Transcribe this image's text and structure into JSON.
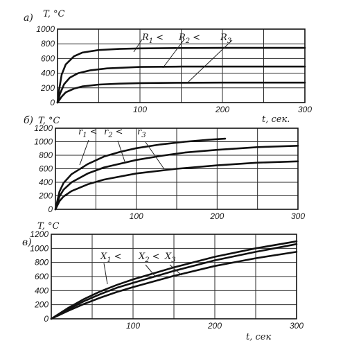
{
  "chart_data": [
    {
      "type": "line",
      "panel_label": "а)",
      "ylabel": "T, °C",
      "xlabel": "",
      "xlim": [
        0,
        300
      ],
      "ylim": [
        0,
        1000
      ],
      "x_ticks": [
        "100",
        "200",
        "300"
      ],
      "y_ticks": [
        "0",
        "200",
        "400",
        "600",
        "800",
        "1000"
      ],
      "grid": true,
      "annotation": {
        "parts": [
          {
            "sym": "R",
            "sub": "1",
            "op": "<"
          },
          {
            "sym": "R",
            "sub": "2",
            "op": "<"
          },
          {
            "sym": "R",
            "sub": "3",
            "op": ""
          }
        ]
      },
      "series": [
        {
          "values": [
            [
              0,
              0
            ],
            [
              2,
              180
            ],
            [
              5,
              380
            ],
            [
              10,
              520
            ],
            [
              20,
              630
            ],
            [
              30,
              680
            ],
            [
              50,
              715
            ],
            [
              75,
              730
            ],
            [
              100,
              738
            ],
            [
              150,
              742
            ],
            [
              200,
              744
            ],
            [
              250,
              744
            ],
            [
              300,
              744
            ]
          ]
        },
        {
          "values": [
            [
              0,
              0
            ],
            [
              3,
              120
            ],
            [
              8,
              250
            ],
            [
              15,
              340
            ],
            [
              25,
              400
            ],
            [
              40,
              440
            ],
            [
              60,
              465
            ],
            [
              100,
              485
            ],
            [
              150,
              490
            ],
            [
              200,
              490
            ],
            [
              250,
              490
            ],
            [
              300,
              490
            ]
          ]
        },
        {
          "values": [
            [
              0,
              0
            ],
            [
              5,
              80
            ],
            [
              10,
              140
            ],
            [
              20,
              190
            ],
            [
              30,
              220
            ],
            [
              50,
              245
            ],
            [
              75,
              258
            ],
            [
              100,
              265
            ],
            [
              150,
              270
            ],
            [
              200,
              272
            ],
            [
              250,
              272
            ],
            [
              300,
              272
            ]
          ]
        }
      ]
    },
    {
      "type": "line",
      "panel_label": "б)",
      "ylabel": "T, °C",
      "xlabel": "t, сек.",
      "xlim": [
        0,
        300
      ],
      "ylim": [
        0,
        1200
      ],
      "x_ticks": [
        "100",
        "200",
        "300"
      ],
      "y_ticks": [
        "0",
        "200",
        "400",
        "600",
        "800",
        "1000",
        "1200"
      ],
      "grid": true,
      "annotation": {
        "parts": [
          {
            "sym": "r",
            "sub": "1",
            "op": "<"
          },
          {
            "sym": "r",
            "sub": "2",
            "op": "<"
          },
          {
            "sym": "r",
            "sub": "3",
            "op": ""
          }
        ]
      },
      "series": [
        {
          "values": [
            [
              0,
              0
            ],
            [
              5,
              260
            ],
            [
              10,
              390
            ],
            [
              20,
              520
            ],
            [
              40,
              670
            ],
            [
              60,
              780
            ],
            [
              80,
              850
            ],
            [
              100,
              905
            ],
            [
              130,
              960
            ],
            [
              160,
              1000
            ],
            [
              190,
              1030
            ],
            [
              210,
              1045
            ]
          ]
        },
        {
          "values": [
            [
              0,
              0
            ],
            [
              5,
              190
            ],
            [
              10,
              290
            ],
            [
              20,
              400
            ],
            [
              40,
              530
            ],
            [
              60,
              620
            ],
            [
              100,
              730
            ],
            [
              130,
              790
            ],
            [
              160,
              840
            ],
            [
              200,
              880
            ],
            [
              250,
              920
            ],
            [
              300,
              940
            ]
          ]
        },
        {
          "values": [
            [
              0,
              0
            ],
            [
              5,
              120
            ],
            [
              10,
              190
            ],
            [
              20,
              270
            ],
            [
              40,
              370
            ],
            [
              60,
              440
            ],
            [
              100,
              530
            ],
            [
              150,
              600
            ],
            [
              200,
              650
            ],
            [
              250,
              690
            ],
            [
              300,
              710
            ]
          ]
        }
      ]
    },
    {
      "type": "line",
      "panel_label": "в)",
      "ylabel": "T, °C",
      "xlabel": "t, сек",
      "xlim": [
        0,
        300
      ],
      "ylim": [
        0,
        1200
      ],
      "x_ticks": [
        "100",
        "200",
        "300"
      ],
      "y_ticks": [
        "0",
        "200",
        "400",
        "600",
        "800",
        "1000",
        "1200"
      ],
      "grid": true,
      "annotation": {
        "parts": [
          {
            "sym": "X",
            "sub": "1",
            "op": "<"
          },
          {
            "sym": "X",
            "sub": "2",
            "op": "<"
          },
          {
            "sym": "X",
            "sub": "3",
            "op": ""
          }
        ]
      },
      "series": [
        {
          "values": [
            [
              0,
              0
            ],
            [
              20,
              150
            ],
            [
              40,
              280
            ],
            [
              60,
              390
            ],
            [
              80,
              480
            ],
            [
              100,
              560
            ],
            [
              150,
              730
            ],
            [
              200,
              880
            ],
            [
              250,
              1000
            ],
            [
              300,
              1100
            ]
          ]
        },
        {
          "values": [
            [
              0,
              0
            ],
            [
              20,
              130
            ],
            [
              40,
              250
            ],
            [
              60,
              350
            ],
            [
              80,
              440
            ],
            [
              100,
              510
            ],
            [
              150,
              680
            ],
            [
              200,
              830
            ],
            [
              250,
              950
            ],
            [
              300,
              1060
            ]
          ]
        },
        {
          "values": [
            [
              0,
              0
            ],
            [
              20,
              110
            ],
            [
              40,
              210
            ],
            [
              60,
              300
            ],
            [
              80,
              380
            ],
            [
              100,
              450
            ],
            [
              150,
              610
            ],
            [
              200,
              750
            ],
            [
              250,
              860
            ],
            [
              300,
              950
            ]
          ]
        }
      ]
    }
  ]
}
